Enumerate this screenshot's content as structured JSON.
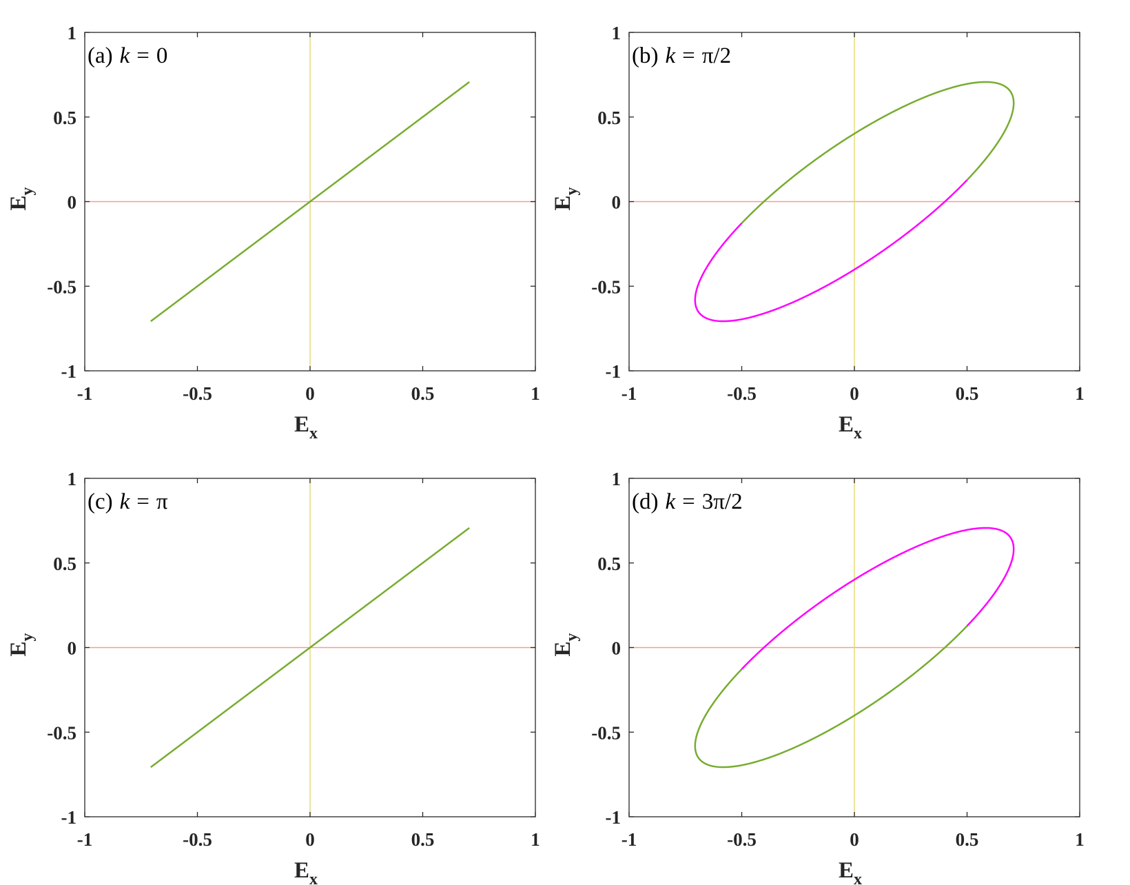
{
  "chart_data": [
    {
      "type": "line",
      "title": "(a)",
      "k_label": "k",
      "k_value": "0",
      "xlabel": "E",
      "xlabel_sub": "x",
      "ylabel": "E",
      "ylabel_sub": "y",
      "xlim": [
        -1,
        1
      ],
      "ylim": [
        -1,
        1
      ],
      "xticks": [
        -1,
        -0.5,
        0,
        0.5,
        1
      ],
      "yticks": [
        -1,
        -0.5,
        0,
        0.5,
        1
      ],
      "xtick_labels": [
        "-1",
        "-0.5",
        "0",
        "0.5",
        "1"
      ],
      "ytick_labels": [
        "-1",
        "-0.5",
        "0",
        "0.5",
        "1"
      ],
      "grid": false,
      "phase": 0,
      "amplitude": 0.707,
      "reference_lines": {
        "horizontal_color": "#f4a08c",
        "vertical_color": "#e6dc78"
      },
      "series": [
        {
          "color": "#77ac30",
          "x": [
            -0.707,
            0.707
          ],
          "y": [
            -0.707,
            0.707
          ]
        }
      ]
    },
    {
      "type": "line",
      "title": "(b)",
      "k_label": "k",
      "k_value": "π/2",
      "xlabel": "E",
      "xlabel_sub": "x",
      "ylabel": "E",
      "ylabel_sub": "y",
      "xlim": [
        -1,
        1
      ],
      "ylim": [
        -1,
        1
      ],
      "xticks": [
        -1,
        -0.5,
        0,
        0.5,
        1
      ],
      "yticks": [
        -1,
        -0.5,
        0,
        0.5,
        1
      ],
      "xtick_labels": [
        "-1",
        "-0.5",
        "0",
        "0.5",
        "1"
      ],
      "ytick_labels": [
        "-1",
        "-0.5",
        "0",
        "0.5",
        "1"
      ],
      "grid": false,
      "phase": 1.5708,
      "amplitude": 0.707,
      "reference_lines": {
        "horizontal_color": "#f4a08c",
        "vertical_color": "#e6dc78"
      },
      "series": [
        {
          "color": "#77ac30",
          "part": "upper"
        },
        {
          "color": "#ff00ff",
          "part": "lower"
        }
      ]
    },
    {
      "type": "line",
      "title": "(c)",
      "k_label": "k",
      "k_value": "π",
      "xlabel": "E",
      "xlabel_sub": "x",
      "ylabel": "E",
      "ylabel_sub": "y",
      "xlim": [
        -1,
        1
      ],
      "ylim": [
        -1,
        1
      ],
      "xticks": [
        -1,
        -0.5,
        0,
        0.5,
        1
      ],
      "yticks": [
        -1,
        -0.5,
        0,
        0.5,
        1
      ],
      "xtick_labels": [
        "-1",
        "-0.5",
        "0",
        "0.5",
        "1"
      ],
      "ytick_labels": [
        "-1",
        "-0.5",
        "0",
        "0.5",
        "1"
      ],
      "grid": false,
      "phase": 0,
      "amplitude": 0.707,
      "reference_lines": {
        "horizontal_color": "#f4a08c",
        "vertical_color": "#e6dc78"
      },
      "series": [
        {
          "color": "#77ac30",
          "x": [
            -0.707,
            0.707
          ],
          "y": [
            -0.707,
            0.707
          ]
        }
      ]
    },
    {
      "type": "line",
      "title": "(d)",
      "k_label": "k",
      "k_value": "3π/2",
      "xlabel": "E",
      "xlabel_sub": "x",
      "ylabel": "E",
      "ylabel_sub": "y",
      "xlim": [
        -1,
        1
      ],
      "ylim": [
        -1,
        1
      ],
      "xticks": [
        -1,
        -0.5,
        0,
        0.5,
        1
      ],
      "yticks": [
        -1,
        -0.5,
        0,
        0.5,
        1
      ],
      "xtick_labels": [
        "-1",
        "-0.5",
        "0",
        "0.5",
        "1"
      ],
      "ytick_labels": [
        "-1",
        "-0.5",
        "0",
        "0.5",
        "1"
      ],
      "grid": false,
      "phase": 1.5708,
      "amplitude": 0.707,
      "reference_lines": {
        "horizontal_color": "#f4a08c",
        "vertical_color": "#e6dc78"
      },
      "series": [
        {
          "color": "#ff00ff",
          "part": "upper"
        },
        {
          "color": "#77ac30",
          "part": "lower"
        }
      ]
    }
  ]
}
